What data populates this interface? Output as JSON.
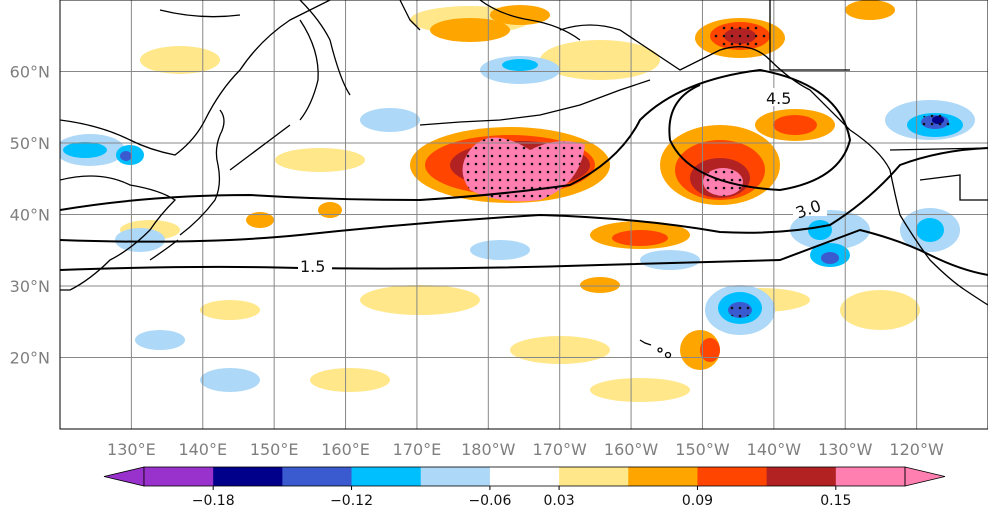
{
  "chart_data": {
    "type": "heatmap",
    "title": "",
    "map": {
      "lon_range": [
        120,
        250
      ],
      "lat_range": [
        10,
        70
      ],
      "x_ticks": [
        "130°E",
        "140°E",
        "150°E",
        "160°E",
        "170°E",
        "180°W",
        "170°W",
        "160°W",
        "150°W",
        "140°W",
        "130°W",
        "120°W"
      ],
      "y_ticks": [
        "20°N",
        "30°N",
        "40°N",
        "50°N",
        "60°N"
      ],
      "grid": true
    },
    "contours": [
      {
        "label": "1.5",
        "lon": 157,
        "lat": 32
      },
      {
        "label": "3.0",
        "lon": 223,
        "lat": 40
      },
      {
        "label": "4.5",
        "lon": 221,
        "lat": 53
      }
    ],
    "colorbar": {
      "tick_labels": [
        "−0.18",
        "−0.12",
        "−0.06",
        "0.03",
        "0.09",
        "0.15"
      ],
      "colors": [
        "#9932cc",
        "#00008b",
        "#3a5bcf",
        "#00bfff",
        "#add8f7",
        "#ffffff",
        "#ffe78a",
        "#ffa500",
        "#ff4500",
        "#b22222",
        "#ff7fb0"
      ],
      "extend": "both"
    }
  }
}
